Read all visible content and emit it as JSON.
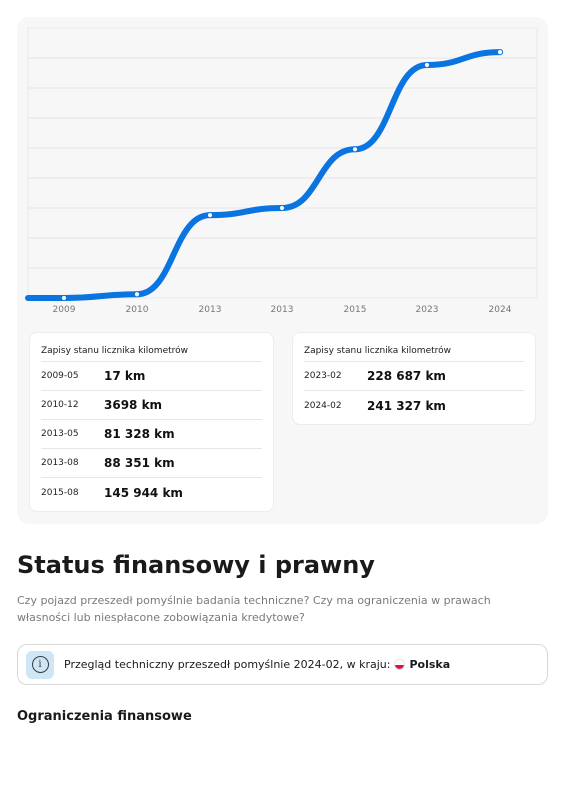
{
  "chart_data": {
    "type": "line",
    "x": [
      "2009",
      "2010",
      "2013",
      "2013",
      "2015",
      "2023",
      "2024"
    ],
    "series": [
      {
        "values": [
          17,
          3698,
          81328,
          88351,
          145944,
          228687,
          241327
        ]
      }
    ],
    "ylim": [
      0,
      265000
    ],
    "grid": true,
    "color": "#0a74e0"
  },
  "odometer": {
    "card_left": {
      "title": "Zapisy stanu licznika kilometrów",
      "rows": [
        {
          "date": "2009-05",
          "km": "17 km"
        },
        {
          "date": "2010-12",
          "km": "3698 km"
        },
        {
          "date": "2013-05",
          "km": "81 328 km"
        },
        {
          "date": "2013-08",
          "km": "88 351 km"
        },
        {
          "date": "2015-08",
          "km": "145 944 km"
        }
      ]
    },
    "card_right": {
      "title": "Zapisy stanu licznika kilometrów",
      "rows": [
        {
          "date": "2023-02",
          "km": "228 687 km"
        },
        {
          "date": "2024-02",
          "km": "241 327 km"
        }
      ]
    }
  },
  "financial": {
    "title": "Status finansowy i prawny",
    "description": "Czy pojazd przeszedł pomyślnie badania techniczne? Czy ma ograniczenia w prawach własności lub niespłacone zobowiązania kredytowe?",
    "alert": {
      "icon": "info-icon",
      "text": "Przegląd techniczny przeszedł pomyślnie 2024-02, w kraju:",
      "country": "Polska",
      "flag_colors": [
        "#ffffff",
        "#dc143c"
      ]
    },
    "restrictions_title": "Ograniczenia finansowe"
  }
}
